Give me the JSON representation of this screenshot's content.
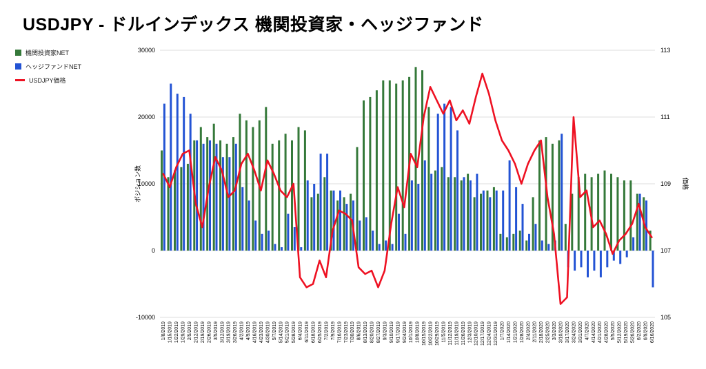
{
  "title": "USDJPY - ドルインデックス 機関投資家・ヘッジファンド",
  "legend": [
    {
      "label": "機関投資家NET",
      "color": "#35793a",
      "swatch": "square"
    },
    {
      "label": "ヘッジファンドNET",
      "color": "#2353d4",
      "swatch": "square"
    },
    {
      "label": "USDJPY価格",
      "color": "#ee1122",
      "swatch": "line"
    }
  ],
  "chart_data": {
    "type": "bar+line",
    "title": "USDJPY - ドルインデックス 機関投資家・ヘッジファンド",
    "grid": true,
    "legend_position": "top-left",
    "left_axis": {
      "label": "ポジション数",
      "min": -10000,
      "max": 30000,
      "ticks": [
        30000,
        20000,
        10000,
        0,
        -10000
      ]
    },
    "right_axis": {
      "label": "価格",
      "min": 105,
      "max": 113,
      "ticks": [
        113,
        111,
        109,
        107,
        105
      ]
    },
    "categories": [
      "1/8/2019",
      "1/15/2019",
      "1/22/2019",
      "1/29/2019",
      "2/5/2019",
      "2/12/2019",
      "2/19/2019",
      "2/26/2019",
      "3/5/2019",
      "3/12/2019",
      "3/19/2019",
      "3/26/2019",
      "4/2/2019",
      "4/9/2019",
      "4/16/2019",
      "4/23/2019",
      "4/30/2019",
      "5/7/2019",
      "5/14/2019",
      "5/21/2019",
      "5/28/2019",
      "6/4/2019",
      "6/11/2019",
      "6/18/2019",
      "6/25/2019",
      "7/2/2019",
      "7/9/2019",
      "7/16/2019",
      "7/23/2019",
      "7/30/2019",
      "8/6/2019",
      "8/13/2019",
      "8/20/2019",
      "8/27/2019",
      "9/3/2019",
      "9/10/2019",
      "9/17/2019",
      "9/24/2019",
      "10/1/2019",
      "10/8/2019",
      "10/15/2019",
      "10/22/2019",
      "10/29/2019",
      "11/5/2019",
      "11/12/2019",
      "11/19/2019",
      "11/26/2019",
      "12/3/2019",
      "12/10/2019",
      "12/17/2019",
      "12/24/2019",
      "12/31/2019",
      "1/7/2020",
      "1/14/2020",
      "1/21/2020",
      "1/28/2020",
      "2/4/2020",
      "2/11/2020",
      "2/18/2020",
      "2/25/2020",
      "3/3/2020",
      "3/10/2020",
      "3/17/2020",
      "3/24/2020",
      "3/31/2020",
      "4/7/2020",
      "4/14/2020",
      "4/21/2020",
      "4/28/2020",
      "5/5/2020",
      "5/12/2020",
      "5/19/2020",
      "5/26/2020",
      "6/2/2020",
      "6/9/2020",
      "6/16/2020"
    ],
    "series": [
      {
        "name": "機関投資家NET",
        "type": "bar",
        "axis": "left",
        "color": "#35793a",
        "values": [
          15000,
          11000,
          12000,
          12500,
          13000,
          16500,
          18500,
          17000,
          19000,
          16500,
          16000,
          17000,
          20500,
          19500,
          18500,
          19500,
          21500,
          16000,
          16500,
          17500,
          16500,
          18500,
          18000,
          8000,
          8500,
          11000,
          9000,
          7500,
          8000,
          8500,
          15500,
          22500,
          23000,
          24000,
          25500,
          25500,
          25000,
          25500,
          26000,
          27500,
          27000,
          21500,
          12000,
          12500,
          11000,
          11000,
          10500,
          11500,
          8000,
          8500,
          9000,
          9500,
          2500,
          2000,
          2500,
          3000,
          1500,
          8000,
          16500,
          17000,
          16000,
          16500,
          4000,
          8500,
          11000,
          11500,
          11000,
          11500,
          12000,
          11500,
          11000,
          10500,
          10500,
          8500,
          8000,
          3000
        ]
      },
      {
        "name": "ヘッジファンドNET",
        "type": "bar",
        "axis": "left",
        "color": "#2353d4",
        "values": [
          22000,
          25000,
          23500,
          23000,
          20500,
          16500,
          16000,
          16500,
          16000,
          14000,
          14000,
          16000,
          9500,
          7500,
          4500,
          2500,
          3000,
          1000,
          500,
          5500,
          3500,
          500,
          10500,
          10000,
          14500,
          14500,
          9000,
          9000,
          7000,
          7500,
          4500,
          5000,
          3000,
          1000,
          1500,
          1000,
          5500,
          2500,
          10500,
          10000,
          13500,
          11500,
          20500,
          22000,
          21500,
          18000,
          11000,
          10500,
          11500,
          9000,
          8000,
          9000,
          9000,
          13500,
          9500,
          7000,
          2500,
          4000,
          1500,
          1000,
          1500,
          17500,
          -2500,
          -3000,
          -2500,
          -4000,
          -3000,
          -4000,
          -2500,
          -1500,
          -2000,
          -1000,
          2000,
          8500,
          7500,
          -5500
        ]
      },
      {
        "name": "USDJPY価格",
        "type": "line",
        "axis": "right",
        "color": "#ee1122",
        "values": [
          109.3,
          108.9,
          109.5,
          109.9,
          110.0,
          108.4,
          107.7,
          108.9,
          109.8,
          109.4,
          108.6,
          108.8,
          109.6,
          109.9,
          109.4,
          108.8,
          109.7,
          109.3,
          108.8,
          108.6,
          109.0,
          106.2,
          105.9,
          106.0,
          106.7,
          106.2,
          107.6,
          108.2,
          108.1,
          107.9,
          106.5,
          106.3,
          106.4,
          105.9,
          106.4,
          107.8,
          108.9,
          108.3,
          109.9,
          109.5,
          111.0,
          111.9,
          111.5,
          111.1,
          111.5,
          110.9,
          111.2,
          110.8,
          111.6,
          112.3,
          111.7,
          110.9,
          110.3,
          110.0,
          109.6,
          109.0,
          109.6,
          110.0,
          110.3,
          108.6,
          107.5,
          105.4,
          105.6,
          111.0,
          108.6,
          108.8,
          107.7,
          107.9,
          107.5,
          106.9,
          107.3,
          107.5,
          107.8,
          108.4,
          107.7,
          107.4
        ]
      }
    ]
  }
}
